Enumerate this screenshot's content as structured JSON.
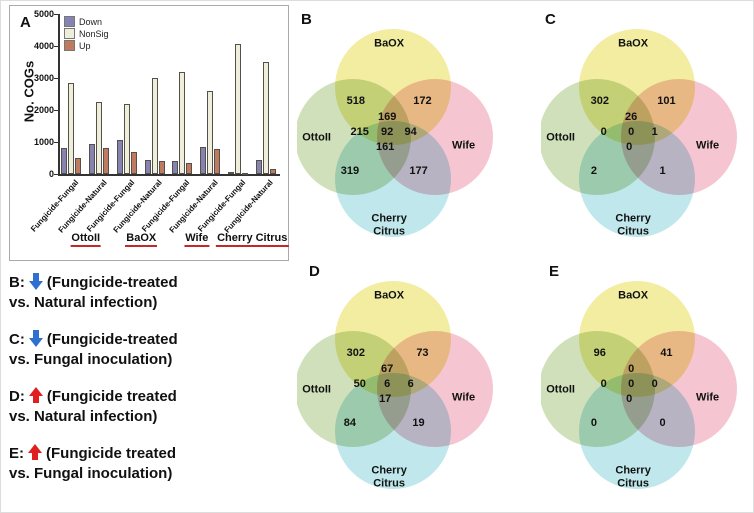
{
  "panels": {
    "A": "A"
  },
  "chart_data": {
    "type": "bar",
    "title": "",
    "ylabel": "No. COGs",
    "ylim": [
      0,
      5000
    ],
    "yticks": [
      0,
      1000,
      2000,
      3000,
      4000,
      5000
    ],
    "group_labels": [
      "OttoII",
      "BaOX",
      "Wife",
      "Cherry Citrus"
    ],
    "categories": [
      "Fungicide-Fungal",
      "Fungicide-Natural",
      "Fungicide-Fungal",
      "Fungicide-Natural",
      "Fungicide-Fungal",
      "Fungicide-Natural",
      "Fungicide-Fungal",
      "Fungicide-Natural"
    ],
    "series": [
      {
        "name": "Down",
        "color": "#8583b1",
        "values": [
          800,
          950,
          1050,
          450,
          400,
          850,
          60,
          430
        ]
      },
      {
        "name": "NonSig",
        "color": "#eeeedb",
        "values": [
          2850,
          2250,
          2200,
          3000,
          3200,
          2600,
          4050,
          3500
        ]
      },
      {
        "name": "Up",
        "color": "#c07a60",
        "values": [
          500,
          800,
          700,
          420,
          350,
          780,
          40,
          150
        ]
      }
    ],
    "legend_position": "upper-left",
    "grid": false
  },
  "venn_sets": {
    "top": "BaOX",
    "left": "OttoII",
    "right": "Wife",
    "bottom": "Cherry\nCitrus"
  },
  "venns": [
    {
      "panel": "B",
      "numbers": {
        "lt": "518",
        "rt": "172",
        "ct": "169",
        "ml": "215",
        "mc": "92",
        "mr": "94",
        "bc": "161",
        "bl": "319",
        "br": "177"
      }
    },
    {
      "panel": "C",
      "numbers": {
        "lt": "302",
        "rt": "101",
        "ct": "26",
        "ml": "0",
        "mc": "0",
        "mr": "1",
        "bc": "0",
        "bl": "2",
        "br": "1"
      }
    },
    {
      "panel": "D",
      "numbers": {
        "lt": "302",
        "rt": "73",
        "ct": "67",
        "ml": "50",
        "mc": "6",
        "mr": "6",
        "bc": "17",
        "bl": "84",
        "br": "19"
      }
    },
    {
      "panel": "E",
      "numbers": {
        "lt": "96",
        "rt": "41",
        "ct": "0",
        "ml": "0",
        "mc": "0",
        "mr": "0",
        "bc": "0",
        "bl": "0",
        "br": "0"
      }
    }
  ],
  "legend_notes": [
    {
      "key": "B:",
      "direction": "down",
      "arrow_color": "#2e6fd0",
      "line1": "(Fungicide-treated",
      "line2": "vs. Natural infection)"
    },
    {
      "key": "C:",
      "direction": "down",
      "arrow_color": "#2e6fd0",
      "line1": "(Fungicide-treated",
      "line2": "vs. Fungal inoculation)"
    },
    {
      "key": "D:",
      "direction": "up",
      "arrow_color": "#e02020",
      "line1": "(Fungicide treated",
      "line2": "vs. Natural infection)"
    },
    {
      "key": "E:",
      "direction": "up",
      "arrow_color": "#e02020",
      "line1": "(Fungicide treated",
      "line2": "vs. Fungal inoculation)"
    }
  ],
  "colors": {
    "down_bar": "#8583b1",
    "nonsig_bar": "#eeeedb",
    "up_bar": "#c07a60",
    "venn_yellow": "#f2eda0",
    "venn_green": "#cfe0ba",
    "venn_pink": "#f5c6d2",
    "venn_cyan": "#bfe7ec",
    "group_underline": "#c22a2a"
  }
}
